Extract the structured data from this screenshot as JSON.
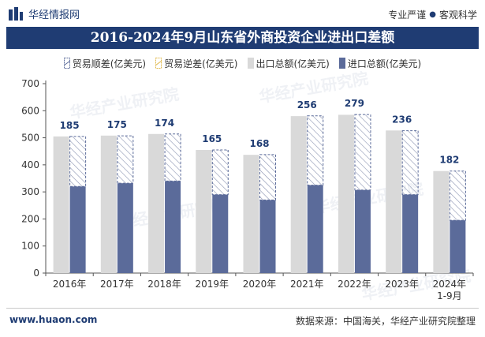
{
  "header": {
    "brand": "华经情报网",
    "tagline_left": "专业严谨",
    "tagline_right": "客观科学"
  },
  "footer": {
    "url": "www.huaon.com",
    "source": "数据来源：中国海关，华经产业研究院整理"
  },
  "watermark_text": "华经产业研究院",
  "colors": {
    "title_bg": "#1f3c73",
    "export": "#d9d9d9",
    "import": "#5b6b9a",
    "surplus_stroke": "#5b6b9a",
    "deficit_stroke": "#e0b84a",
    "label": "#1f3c73"
  },
  "chart_data": {
    "type": "bar",
    "title": "2016-2024年9月山东省外商投资企业进出口差额",
    "categories": [
      "2016年",
      "2017年",
      "2018年",
      "2019年",
      "2020年",
      "2021年",
      "2022年",
      "2023年",
      "2024年\n1-9月"
    ],
    "series": [
      {
        "name": "贸易顺差(亿美元)",
        "values": [
          185,
          175,
          174,
          165,
          168,
          256,
          279,
          236,
          182
        ]
      },
      {
        "name": "贸易逆差(亿美元)",
        "values": [
          0,
          0,
          0,
          0,
          0,
          0,
          0,
          0,
          0
        ]
      },
      {
        "name": "出口总额(亿美元)",
        "values": [
          505,
          508,
          514,
          455,
          437,
          580,
          585,
          527,
          377
        ]
      },
      {
        "name": "进口总额(亿美元)",
        "values": [
          320,
          332,
          340,
          290,
          270,
          325,
          307,
          290,
          195
        ]
      }
    ],
    "ylim": [
      0,
      700
    ],
    "yticks": [
      0,
      100,
      200,
      300,
      400,
      500,
      600,
      700
    ],
    "xlabel": "",
    "ylabel": "",
    "legend_position": "top-center"
  }
}
